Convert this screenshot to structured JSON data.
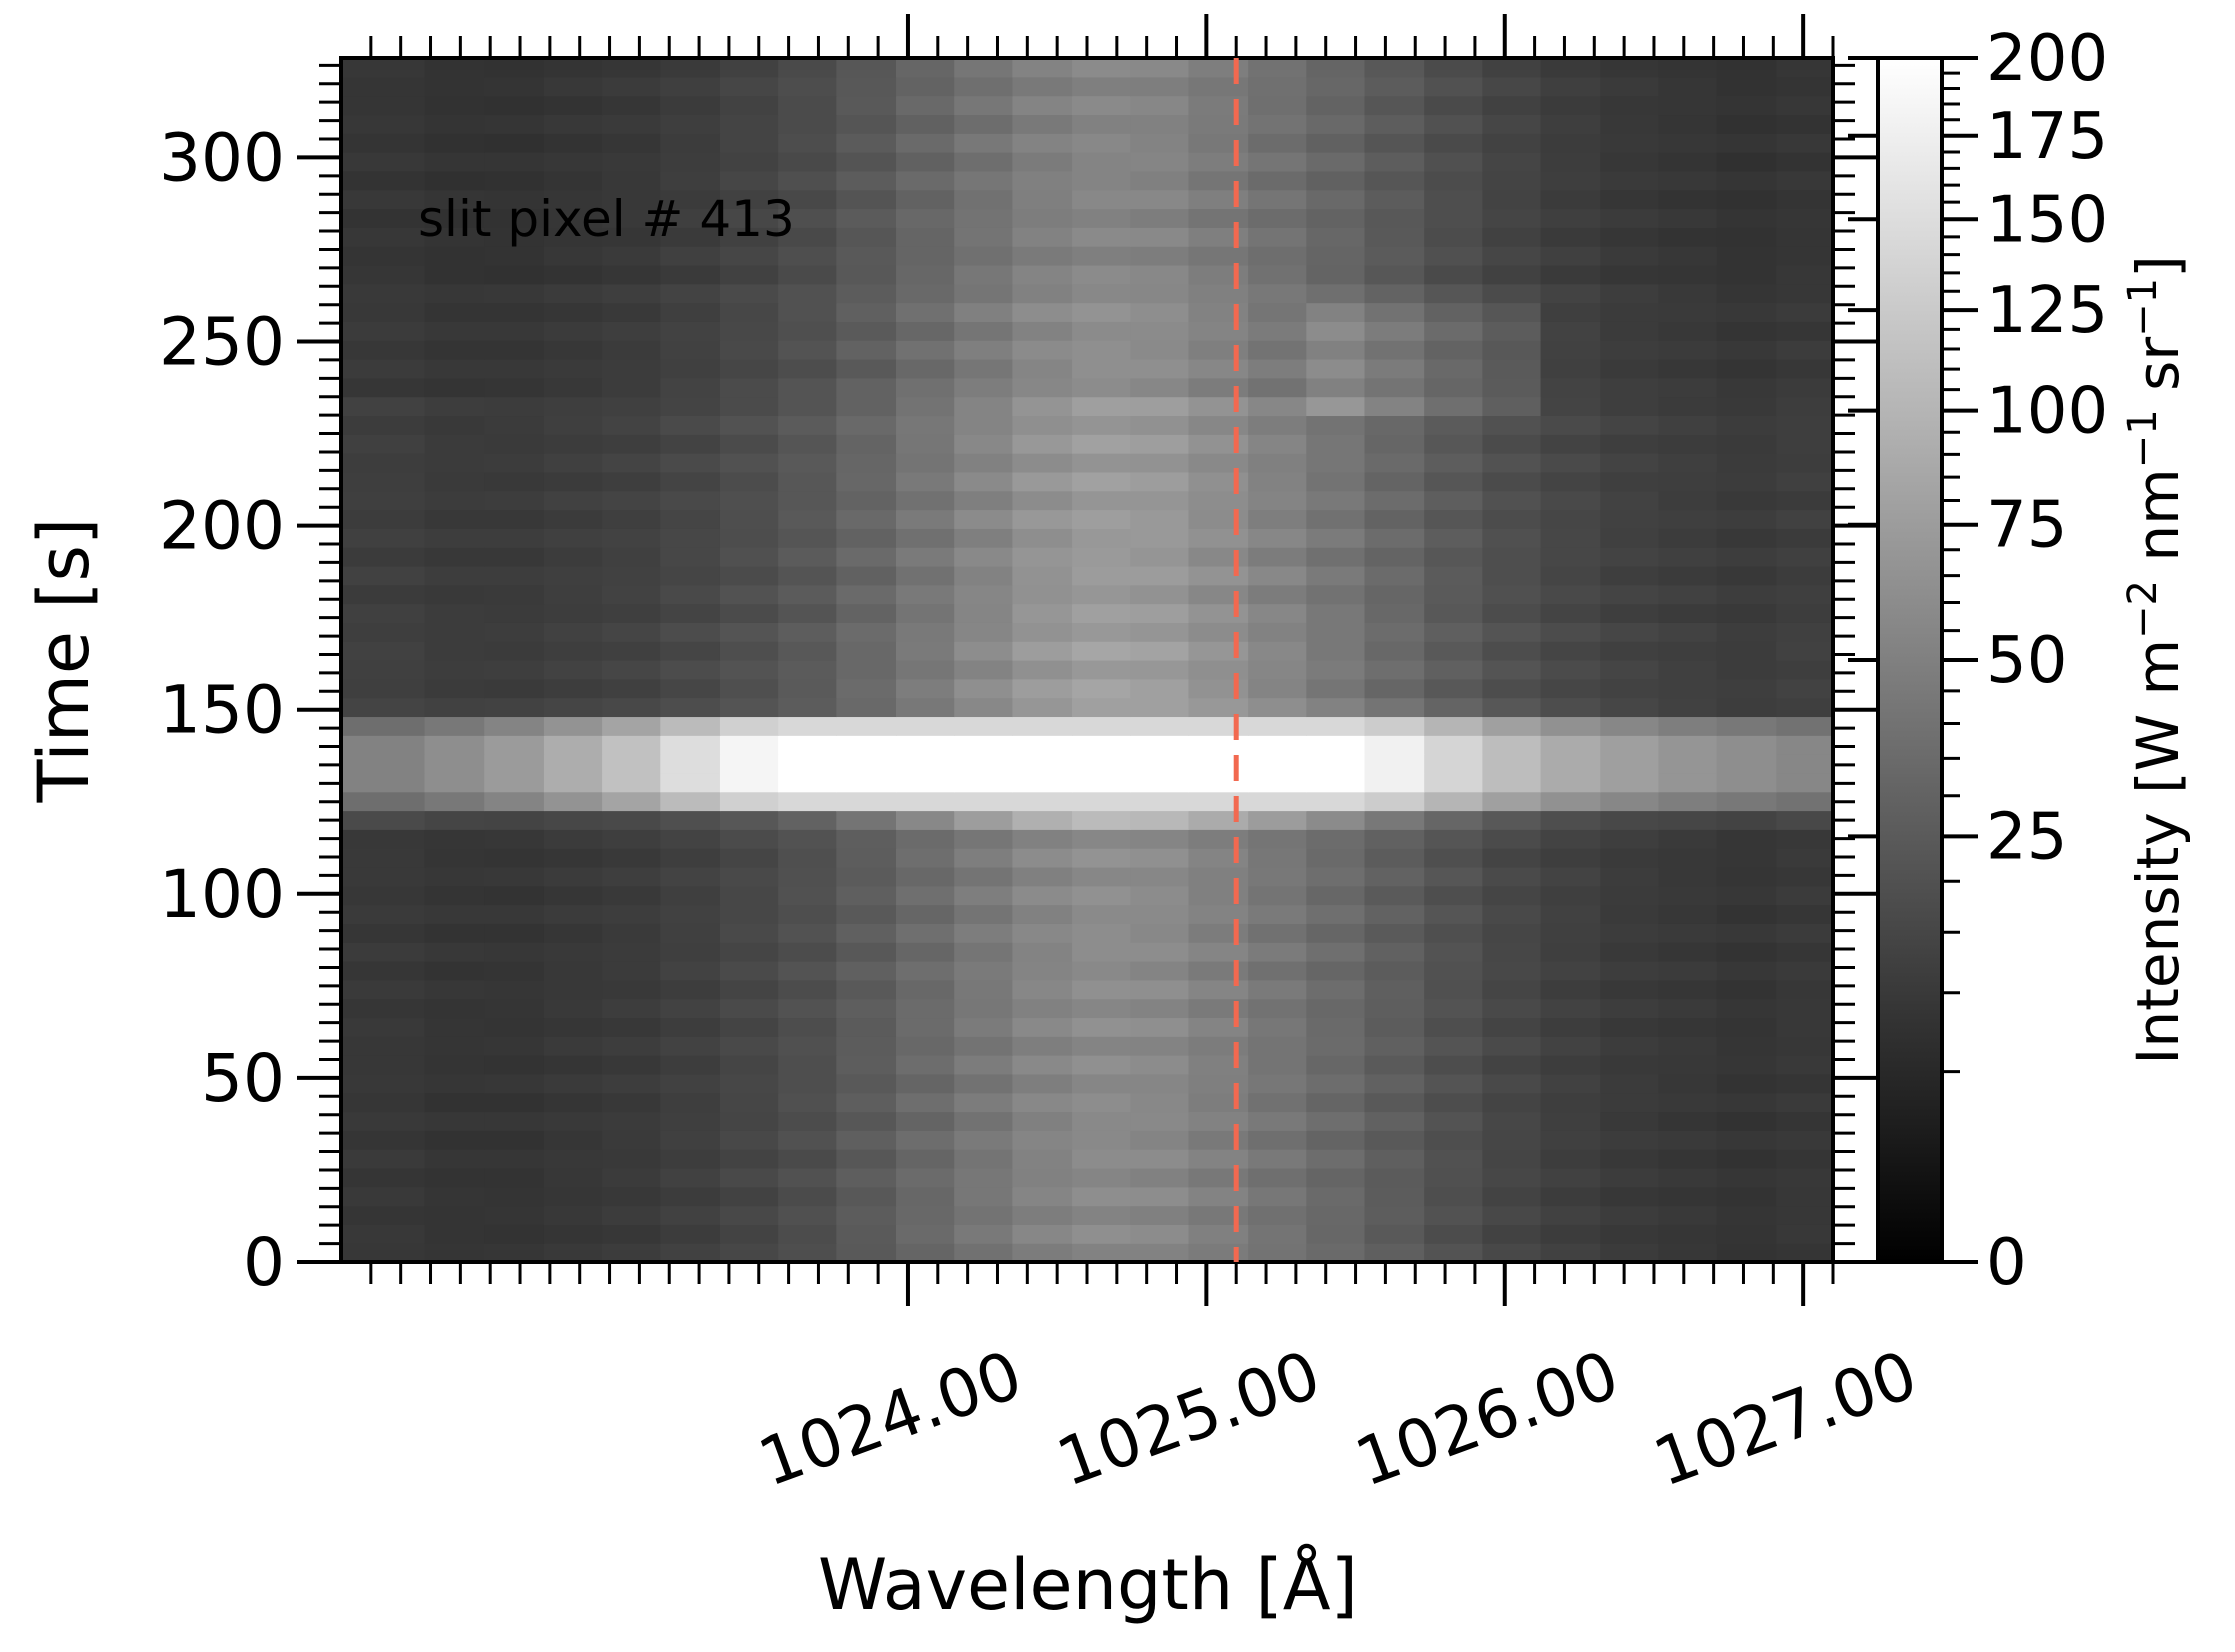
{
  "chart_data": {
    "type": "heatmap",
    "xlabel": "Wavelength [Å]",
    "ylabel": "Time [s]",
    "colorbar_label_parts": [
      "Intensity [W m",
      "−2",
      " nm",
      "−1",
      " sr",
      "−1",
      "]"
    ],
    "annotation": "slit pixel # 413",
    "annotation_color": "#f26950",
    "marker_line_color": "#f26950",
    "marker_line_x": 1025.1,
    "xlim": [
      1022.1,
      1027.1
    ],
    "ylim": [
      0,
      327
    ],
    "x_ticks": [
      1024.0,
      1025.0,
      1026.0,
      1027.0
    ],
    "x_tick_labels": [
      "1024.00",
      "1025.00",
      "1026.00",
      "1027.00"
    ],
    "y_ticks": [
      0,
      50,
      100,
      150,
      200,
      250,
      300
    ],
    "y_tick_labels": [
      "0",
      "50",
      "100",
      "150",
      "200",
      "250",
      "300"
    ],
    "colorbar_ticks": [
      0,
      25,
      50,
      75,
      100,
      125,
      150,
      175,
      200
    ],
    "colorbar_tick_labels": [
      "0",
      "25",
      "50",
      "75",
      "100",
      "125",
      "150",
      "175",
      "200"
    ],
    "colorbar_scale": "sqrt",
    "colorbar_range": [
      0,
      200
    ],
    "colormap": "gray",
    "x_bin_centers": [
      1022.28,
      1022.48,
      1022.68,
      1022.88,
      1023.07,
      1023.27,
      1023.47,
      1023.66,
      1023.86,
      1024.06,
      1024.25,
      1024.45,
      1024.65,
      1024.84,
      1025.04,
      1025.24,
      1025.43,
      1025.63,
      1025.83,
      1026.02,
      1026.22,
      1026.42,
      1026.61,
      1026.81,
      1027.01
    ],
    "intensity_profile_quiet": [
      10,
      9,
      9,
      10,
      11,
      13,
      16,
      20,
      27,
      36,
      46,
      56,
      62,
      60,
      52,
      44,
      36,
      28,
      21,
      16,
      13,
      11,
      10,
      9,
      10
    ],
    "intensity_profile_flare": [
      52,
      62,
      74,
      92,
      115,
      150,
      185,
      200,
      200,
      200,
      200,
      200,
      200,
      200,
      200,
      200,
      200,
      178,
      140,
      110,
      90,
      78,
      68,
      62,
      56
    ]
  }
}
